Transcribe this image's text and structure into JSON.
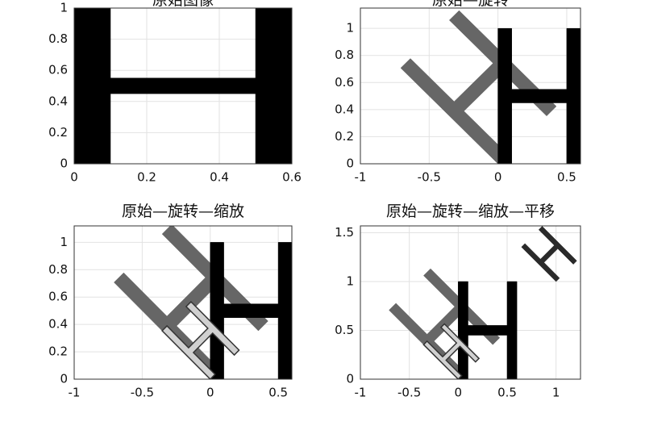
{
  "chart_data": [
    {
      "type": "polygon",
      "title": "原始图像",
      "xlim": [
        0,
        0.6
      ],
      "ylim": [
        0,
        1
      ],
      "xticks": [
        0,
        0.2,
        0.4,
        0.6
      ],
      "yticks": [
        0,
        0.2,
        0.4,
        0.6,
        0.8,
        1
      ],
      "grid": true,
      "series": [
        {
          "color": "#000000",
          "x": [
            0,
            0.1,
            0.1,
            0.5,
            0.5,
            0.6,
            0.6,
            0.5,
            0.5,
            0.1,
            0.1,
            0
          ],
          "y": [
            0,
            0,
            0.45,
            0.45,
            0,
            0,
            1,
            1,
            0.55,
            0.55,
            1,
            1
          ]
        }
      ]
    },
    {
      "type": "polygon",
      "title": "原始—旋转",
      "xlim": [
        -1,
        0.6
      ],
      "ylim": [
        0,
        1.15
      ],
      "xticks": [
        -1,
        -0.5,
        0,
        0.5
      ],
      "yticks": [
        0,
        0.2,
        0.4,
        0.6,
        0.8,
        1
      ],
      "grid": true,
      "series": [
        {
          "color": "#666666",
          "x": [
            0,
            0.0707,
            -0.2475,
            0.0354,
            0.3536,
            0.4243,
            -0.2828,
            -0.3536,
            -0.0354,
            -0.3182,
            -0.6364,
            -0.7071
          ],
          "y": [
            0,
            0.0707,
            0.3889,
            0.6718,
            0.3536,
            0.4243,
            1.1314,
            1.0607,
            0.7425,
            0.4596,
            0.7778,
            0.7071
          ]
        },
        {
          "color": "#000000",
          "x": [
            0,
            0.1,
            0.1,
            0.5,
            0.5,
            0.6,
            0.6,
            0.5,
            0.5,
            0.1,
            0.1,
            0
          ],
          "y": [
            0,
            0,
            0.45,
            0.45,
            0,
            0,
            1,
            1,
            0.55,
            0.55,
            1,
            1
          ]
        }
      ]
    },
    {
      "type": "polygon",
      "title": "原始—旋转—缩放",
      "xlim": [
        -1,
        0.6
      ],
      "ylim": [
        0,
        1.12
      ],
      "xticks": [
        -1,
        -0.5,
        0,
        0.5
      ],
      "yticks": [
        0,
        0.2,
        0.4,
        0.6,
        0.8,
        1
      ],
      "grid": true,
      "series": [
        {
          "color": "#666666",
          "x": [
            0,
            0.0707,
            -0.2475,
            0.0354,
            0.3536,
            0.4243,
            -0.2828,
            -0.3536,
            -0.0354,
            -0.3182,
            -0.6364,
            -0.7071
          ],
          "y": [
            0,
            0.0707,
            0.3889,
            0.6718,
            0.3536,
            0.4243,
            1.1314,
            1.0607,
            0.7425,
            0.4596,
            0.7778,
            0.7071
          ]
        },
        {
          "color": "#000000",
          "x": [
            0,
            0.1,
            0.1,
            0.5,
            0.5,
            0.6,
            0.6,
            0.5,
            0.5,
            0.1,
            0.1,
            0
          ],
          "y": [
            0,
            0,
            0.45,
            0.45,
            0,
            0,
            1,
            1,
            0.55,
            0.55,
            1,
            1
          ]
        },
        {
          "color": "#d0d0d0",
          "edge_color": "#333333",
          "x": [
            0,
            0.0354,
            -0.1237,
            0.0177,
            0.1768,
            0.2121,
            -0.1414,
            -0.1768,
            -0.0177,
            -0.1591,
            -0.3182,
            -0.3536
          ],
          "y": [
            0,
            0.0354,
            0.1945,
            0.3359,
            0.1768,
            0.2121,
            0.5657,
            0.5303,
            0.3712,
            0.2298,
            0.3889,
            0.3536
          ]
        }
      ]
    },
    {
      "type": "polygon",
      "title": "原始—旋转—缩放—平移",
      "xlim": [
        -1,
        1.25
      ],
      "ylim": [
        0,
        1.57
      ],
      "xticks": [
        -1,
        -0.5,
        0,
        0.5,
        1
      ],
      "yticks": [
        0,
        0.5,
        1,
        1.5
      ],
      "grid": true,
      "series": [
        {
          "color": "#666666",
          "x": [
            0,
            0.0707,
            -0.2475,
            0.0354,
            0.3536,
            0.4243,
            -0.2828,
            -0.3536,
            -0.0354,
            -0.3182,
            -0.6364,
            -0.7071
          ],
          "y": [
            0,
            0.0707,
            0.3889,
            0.6718,
            0.3536,
            0.4243,
            1.1314,
            1.0607,
            0.7425,
            0.4596,
            0.7778,
            0.7071
          ]
        },
        {
          "color": "#000000",
          "x": [
            0,
            0.1,
            0.1,
            0.5,
            0.5,
            0.6,
            0.6,
            0.5,
            0.5,
            0.1,
            0.1,
            0
          ],
          "y": [
            0,
            0,
            0.45,
            0.45,
            0,
            0,
            1,
            1,
            0.55,
            0.55,
            1,
            1
          ]
        },
        {
          "color": "#d0d0d0",
          "edge_color": "#333333",
          "x": [
            0,
            0.0354,
            -0.1237,
            0.0177,
            0.1768,
            0.2121,
            -0.1414,
            -0.1768,
            -0.0177,
            -0.1591,
            -0.3182,
            -0.3536
          ],
          "y": [
            0,
            0.0354,
            0.1945,
            0.3359,
            0.1768,
            0.2121,
            0.5657,
            0.5303,
            0.3712,
            0.2298,
            0.3889,
            0.3536
          ]
        },
        {
          "color": "#2a2a2a",
          "x": [
            1,
            1.0354,
            0.8763,
            1.0177,
            1.1768,
            1.2121,
            0.8586,
            0.8232,
            0.9823,
            0.8409,
            0.6818,
            0.6464
          ],
          "y": [
            1,
            1.0354,
            1.1945,
            1.3359,
            1.1768,
            1.2121,
            1.5657,
            1.5303,
            1.3712,
            1.2298,
            1.3889,
            1.3536
          ]
        }
      ]
    }
  ]
}
